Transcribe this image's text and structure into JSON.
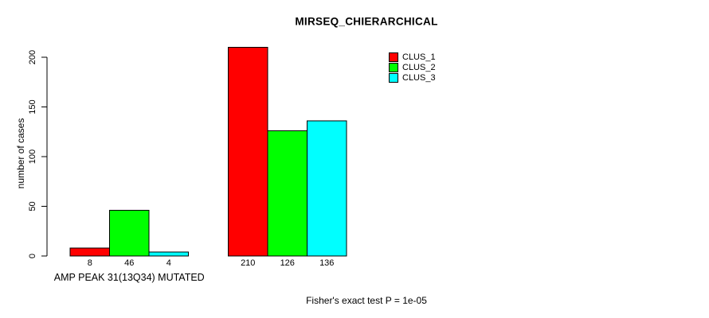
{
  "title": "MIRSEQ_CHIERARCHICAL",
  "chart_data": {
    "type": "bar",
    "title": "MIRSEQ_CHIERARCHICAL",
    "xlabel": "",
    "ylabel": "number of cases",
    "ylim": [
      0,
      210
    ],
    "yticks": [
      0,
      50,
      100,
      150,
      200
    ],
    "grid": false,
    "legend_position": "top-right",
    "categories": [
      "AMP PEAK 31(13Q34) MUTATED",
      ""
    ],
    "series": [
      {
        "name": "CLUS_1",
        "color": "#FF0000",
        "values": [
          8,
          210
        ]
      },
      {
        "name": "CLUS_2",
        "color": "#00FF00",
        "values": [
          46,
          126
        ]
      },
      {
        "name": "CLUS_3",
        "color": "#00FFFF",
        "values": [
          4,
          136
        ]
      }
    ],
    "bar_value_labels": [
      [
        8,
        46,
        4
      ],
      [
        210,
        126,
        136
      ]
    ],
    "annotation": "Fisher's exact test P = 1e-05"
  }
}
